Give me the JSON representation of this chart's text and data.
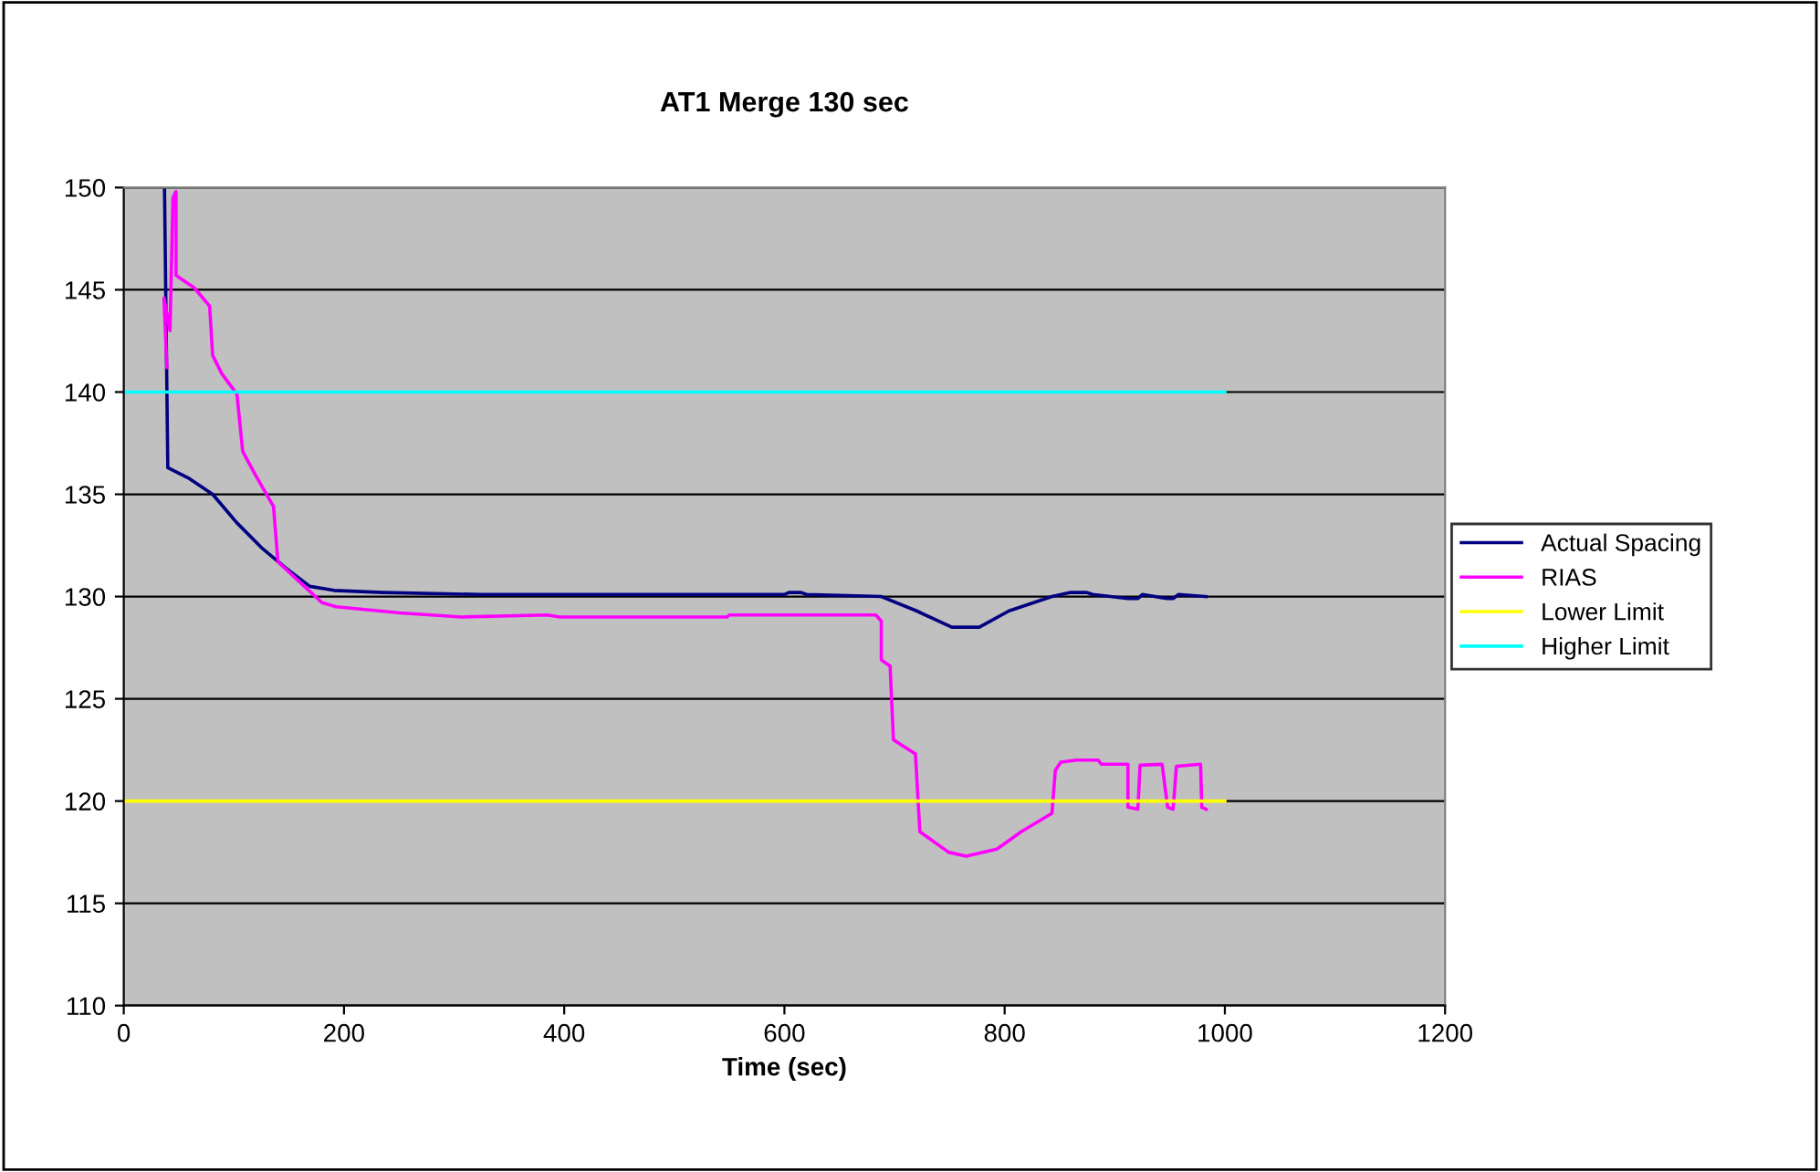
{
  "chart_data": {
    "type": "line",
    "title": "AT1 Merge 130 sec",
    "xlabel": "Time (sec)",
    "xlim": [
      0,
      1200
    ],
    "xticks": [
      0,
      200,
      400,
      600,
      800,
      1000,
      1200
    ],
    "ylim": [
      110,
      150
    ],
    "yticks": [
      110,
      115,
      120,
      125,
      130,
      135,
      140,
      145,
      150
    ],
    "grid": "y",
    "legend": "right",
    "marker": "none",
    "line_style": "solid",
    "series": [
      {
        "name": "Actual Spacing",
        "color": "#000080",
        "x": [
          37,
          40,
          58.5,
          80.7,
          102.8,
          124.9,
          147,
          169,
          191,
          235,
          324,
          600,
          604,
          615,
          620,
          688,
          720,
          752,
          777,
          804,
          843,
          860,
          874,
          880,
          912,
          921,
          925,
          948,
          953,
          958,
          983
        ],
        "values": [
          150,
          136.3,
          135.8,
          135,
          133.6,
          132.4,
          131.4,
          130.5,
          130.3,
          130.2,
          130.1,
          130.1,
          130.2,
          130.2,
          130.1,
          130,
          129.3,
          128.5,
          128.5,
          129.3,
          130,
          130.2,
          130.2,
          130.1,
          129.9,
          129.9,
          130.1,
          129.9,
          129.9,
          130.1,
          130
        ]
      },
      {
        "name": "RIAS",
        "color": "#ff00ff",
        "x": [
          39.2,
          36.5,
          42,
          44.7,
          47.5,
          47.5,
          64,
          78,
          80.7,
          89,
          102.8,
          108,
          119,
          136,
          140,
          158,
          180,
          193,
          251,
          307,
          384.6,
          396,
          548,
          550,
          683,
          688,
          688,
          696,
          699,
          719,
          723,
          749,
          765,
          793,
          815,
          843,
          846,
          851,
          865,
          885,
          888,
          912,
          912,
          921,
          923,
          943,
          948,
          953,
          956,
          978,
          979,
          983
        ],
        "values": [
          141.2,
          144.6,
          143,
          149.5,
          149.8,
          145.7,
          145.1,
          144.2,
          141.8,
          140.9,
          139.9,
          137.1,
          136,
          134.4,
          131.7,
          130.8,
          129.7,
          129.5,
          129.2,
          129,
          129.1,
          129,
          129,
          129.1,
          129.1,
          128.8,
          126.9,
          126.6,
          123,
          122.3,
          118.5,
          117.5,
          117.3,
          117.65,
          118.5,
          119.4,
          121.5,
          121.9,
          122,
          122,
          121.8,
          121.8,
          119.7,
          119.6,
          121.75,
          121.8,
          119.7,
          119.6,
          121.7,
          121.8,
          119.7,
          119.6
        ]
      },
      {
        "name": "Lower Limit",
        "color": "#ffff00",
        "x": [
          0,
          1000
        ],
        "values": [
          120,
          120
        ]
      },
      {
        "name": "Higher Limit",
        "color": "#00ffff",
        "x": [
          0,
          1000
        ],
        "values": [
          140,
          140
        ]
      }
    ]
  }
}
